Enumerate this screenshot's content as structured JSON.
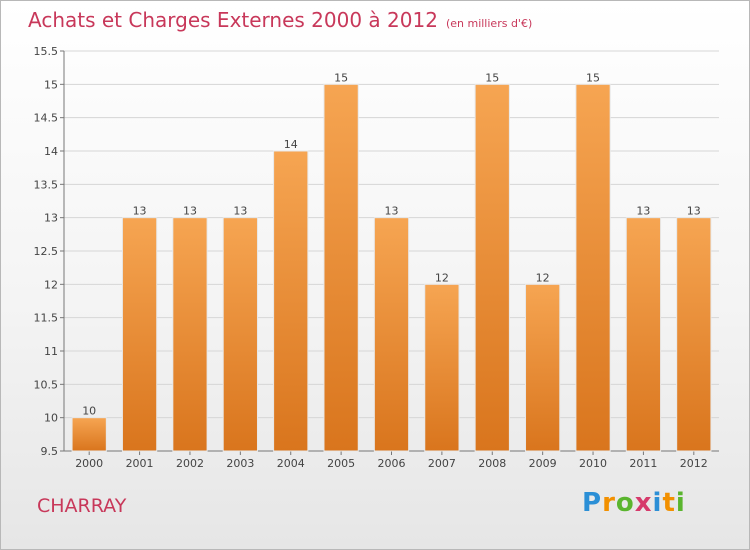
{
  "header": {
    "title": "Achats et Charges Externes 2000 à 2012",
    "subtitle": "(en milliers d'€)"
  },
  "commune": "CHARRAY",
  "logo": {
    "text": "Proxiti",
    "letters": [
      {
        "ch": "P",
        "color": "#2b8fd6"
      },
      {
        "ch": "r",
        "color": "#f29000"
      },
      {
        "ch": "o",
        "color": "#5ab52e"
      },
      {
        "ch": "x",
        "color": "#d63a6b"
      },
      {
        "ch": "i",
        "color": "#2b8fd6"
      },
      {
        "ch": "t",
        "color": "#f29000"
      },
      {
        "ch": "i",
        "color": "#5ab52e"
      }
    ]
  },
  "chart_data": {
    "type": "bar",
    "categories": [
      "2000",
      "2001",
      "2002",
      "2003",
      "2004",
      "2005",
      "2006",
      "2007",
      "2008",
      "2009",
      "2010",
      "2011",
      "2012"
    ],
    "values": [
      10,
      13,
      13,
      13,
      14,
      15,
      13,
      12,
      15,
      12,
      15,
      13,
      13
    ],
    "value_labels": [
      "10",
      "13",
      "13",
      "13",
      "14",
      "15",
      "13",
      "12",
      "15",
      "12",
      "15",
      "13",
      "13"
    ],
    "ylim": [
      9.5,
      15.5
    ],
    "yticks": [
      9.5,
      10,
      10.5,
      11,
      11.5,
      12,
      12.5,
      13,
      13.5,
      14,
      14.5,
      15,
      15.5
    ],
    "ytick_labels": [
      "9.5",
      "10",
      "10.5",
      "11",
      "11.5",
      "12",
      "12.5",
      "13",
      "13.5",
      "14",
      "14.5",
      "15",
      "15.5"
    ],
    "grid": true,
    "bar_color": "#f0923a"
  }
}
